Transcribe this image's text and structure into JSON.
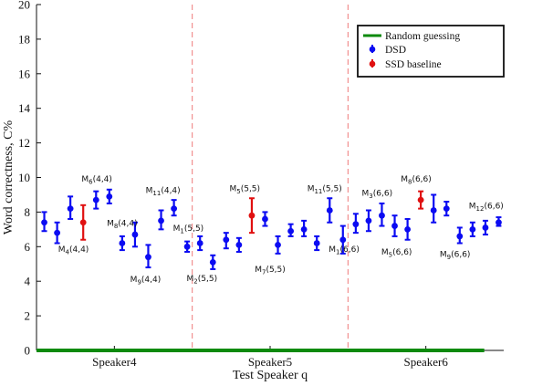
{
  "chart_data": {
    "type": "scatter",
    "xlabel": "Test Speaker q",
    "ylabel": "Word correctness, C%",
    "ylim": [
      0,
      20
    ],
    "yticks": [
      0,
      2,
      4,
      6,
      8,
      10,
      12,
      14,
      16,
      18,
      20
    ],
    "grid": false,
    "legend_position": "top-right",
    "colors": {
      "dsd": "#0b0bf2",
      "ssd": "#e01010",
      "random": "#0c8a0c",
      "separator": "#f07a7a"
    },
    "categories": [
      {
        "label": "Speaker4",
        "x": 2
      },
      {
        "label": "Speaker5",
        "x": 6
      },
      {
        "label": "Speaker6",
        "x": 10
      }
    ],
    "separators_x": [
      4,
      8
    ],
    "xlim": [
      0,
      12
    ],
    "legend": {
      "random": "Random guessing",
      "dsd": "DSD",
      "ssd": "SSD baseline"
    },
    "random_guessing": 0,
    "series": [
      {
        "name": "DSD",
        "points": [
          {
            "x": 0.2,
            "y": 7.4,
            "lo": 6.9,
            "hi": 8.0
          },
          {
            "x": 0.53,
            "y": 6.8,
            "lo": 6.2,
            "hi": 7.4
          },
          {
            "x": 0.87,
            "y": 8.2,
            "lo": 7.6,
            "hi": 8.9
          },
          {
            "x": 1.53,
            "y": 8.7,
            "lo": 8.2,
            "hi": 9.2
          },
          {
            "x": 1.87,
            "y": 8.9,
            "lo": 8.5,
            "hi": 9.3
          },
          {
            "x": 2.2,
            "y": 6.2,
            "lo": 5.8,
            "hi": 6.6
          },
          {
            "x": 2.53,
            "y": 6.7,
            "lo": 6.0,
            "hi": 7.4
          },
          {
            "x": 2.87,
            "y": 5.4,
            "lo": 4.8,
            "hi": 6.1
          },
          {
            "x": 3.2,
            "y": 7.5,
            "lo": 7.0,
            "hi": 8.1
          },
          {
            "x": 3.53,
            "y": 8.2,
            "lo": 7.8,
            "hi": 8.7
          },
          {
            "x": 3.87,
            "y": 6.0,
            "lo": 5.7,
            "hi": 6.3
          },
          {
            "x": 4.2,
            "y": 6.2,
            "lo": 5.8,
            "hi": 6.6
          },
          {
            "x": 4.53,
            "y": 5.1,
            "lo": 4.7,
            "hi": 5.5
          },
          {
            "x": 4.87,
            "y": 6.4,
            "lo": 5.9,
            "hi": 6.8
          },
          {
            "x": 5.2,
            "y": 6.1,
            "lo": 5.7,
            "hi": 6.5
          },
          {
            "x": 5.87,
            "y": 7.6,
            "lo": 7.2,
            "hi": 8.0
          },
          {
            "x": 6.2,
            "y": 6.1,
            "lo": 5.6,
            "hi": 6.6
          },
          {
            "x": 6.53,
            "y": 6.9,
            "lo": 6.6,
            "hi": 7.3
          },
          {
            "x": 6.87,
            "y": 7.0,
            "lo": 6.6,
            "hi": 7.5
          },
          {
            "x": 7.2,
            "y": 6.2,
            "lo": 5.8,
            "hi": 6.6
          },
          {
            "x": 7.53,
            "y": 8.1,
            "lo": 7.4,
            "hi": 8.8
          },
          {
            "x": 7.87,
            "y": 6.4,
            "lo": 5.6,
            "hi": 7.2
          },
          {
            "x": 8.2,
            "y": 7.3,
            "lo": 6.8,
            "hi": 7.9
          },
          {
            "x": 8.53,
            "y": 7.5,
            "lo": 6.9,
            "hi": 8.1
          },
          {
            "x": 8.87,
            "y": 7.8,
            "lo": 7.2,
            "hi": 8.5
          },
          {
            "x": 9.2,
            "y": 7.2,
            "lo": 6.6,
            "hi": 7.8
          },
          {
            "x": 9.53,
            "y": 7.0,
            "lo": 6.4,
            "hi": 7.6
          },
          {
            "x": 10.2,
            "y": 8.1,
            "lo": 7.4,
            "hi": 9.0
          },
          {
            "x": 10.53,
            "y": 8.2,
            "lo": 7.8,
            "hi": 8.6
          },
          {
            "x": 10.87,
            "y": 6.6,
            "lo": 6.2,
            "hi": 7.1
          },
          {
            "x": 11.2,
            "y": 7.0,
            "lo": 6.6,
            "hi": 7.4
          },
          {
            "x": 11.53,
            "y": 7.1,
            "lo": 6.7,
            "hi": 7.5
          },
          {
            "x": 11.87,
            "y": 7.4,
            "lo": 7.2,
            "hi": 7.7
          }
        ]
      },
      {
        "name": "SSD baseline",
        "points": [
          {
            "x": 1.2,
            "y": 7.4,
            "lo": 6.4,
            "hi": 8.4
          },
          {
            "x": 5.53,
            "y": 7.8,
            "lo": 6.8,
            "hi": 8.8
          },
          {
            "x": 9.87,
            "y": 8.7,
            "lo": 8.2,
            "hi": 9.2
          }
        ]
      }
    ],
    "annotations": [
      {
        "base": "M",
        "sub": "6",
        "params": "(4,4)",
        "x": 1.55,
        "y": 9.75
      },
      {
        "base": "M",
        "sub": "4",
        "params": "(4,4)",
        "x": 0.95,
        "y": 5.7
      },
      {
        "base": "M",
        "sub": "8",
        "params": "(4,4)",
        "x": 2.2,
        "y": 7.2
      },
      {
        "base": "M",
        "sub": "9",
        "params": "(4,4)",
        "x": 2.8,
        "y": 3.95
      },
      {
        "base": "M",
        "sub": "11",
        "params": "(4,4)",
        "x": 3.25,
        "y": 9.1
      },
      {
        "base": "M",
        "sub": "1",
        "params": "(5,5)",
        "x": 3.9,
        "y": 6.9
      },
      {
        "base": "M",
        "sub": "2",
        "params": "(5,5)",
        "x": 4.25,
        "y": 4.0
      },
      {
        "base": "M",
        "sub": "5",
        "params": "(5,5)",
        "x": 5.35,
        "y": 9.2
      },
      {
        "base": "M",
        "sub": "7",
        "params": "(5,5)",
        "x": 6.0,
        "y": 4.55
      },
      {
        "base": "M",
        "sub": "11",
        "params": "(5,5)",
        "x": 7.4,
        "y": 9.2
      },
      {
        "base": "M",
        "sub": "1",
        "params": "(6,6)",
        "x": 7.9,
        "y": 5.7
      },
      {
        "base": "M",
        "sub": "3",
        "params": "(6,6)",
        "x": 8.75,
        "y": 8.95
      },
      {
        "base": "M",
        "sub": "8",
        "params": "(6,6)",
        "x": 9.75,
        "y": 9.75
      },
      {
        "base": "M",
        "sub": "5",
        "params": "(6,6)",
        "x": 9.25,
        "y": 5.55
      },
      {
        "base": "M",
        "sub": "9",
        "params": "(6,6)",
        "x": 10.75,
        "y": 5.4
      },
      {
        "base": "M",
        "sub": "12",
        "params": "(6,6)",
        "x": 11.55,
        "y": 8.2
      }
    ]
  }
}
